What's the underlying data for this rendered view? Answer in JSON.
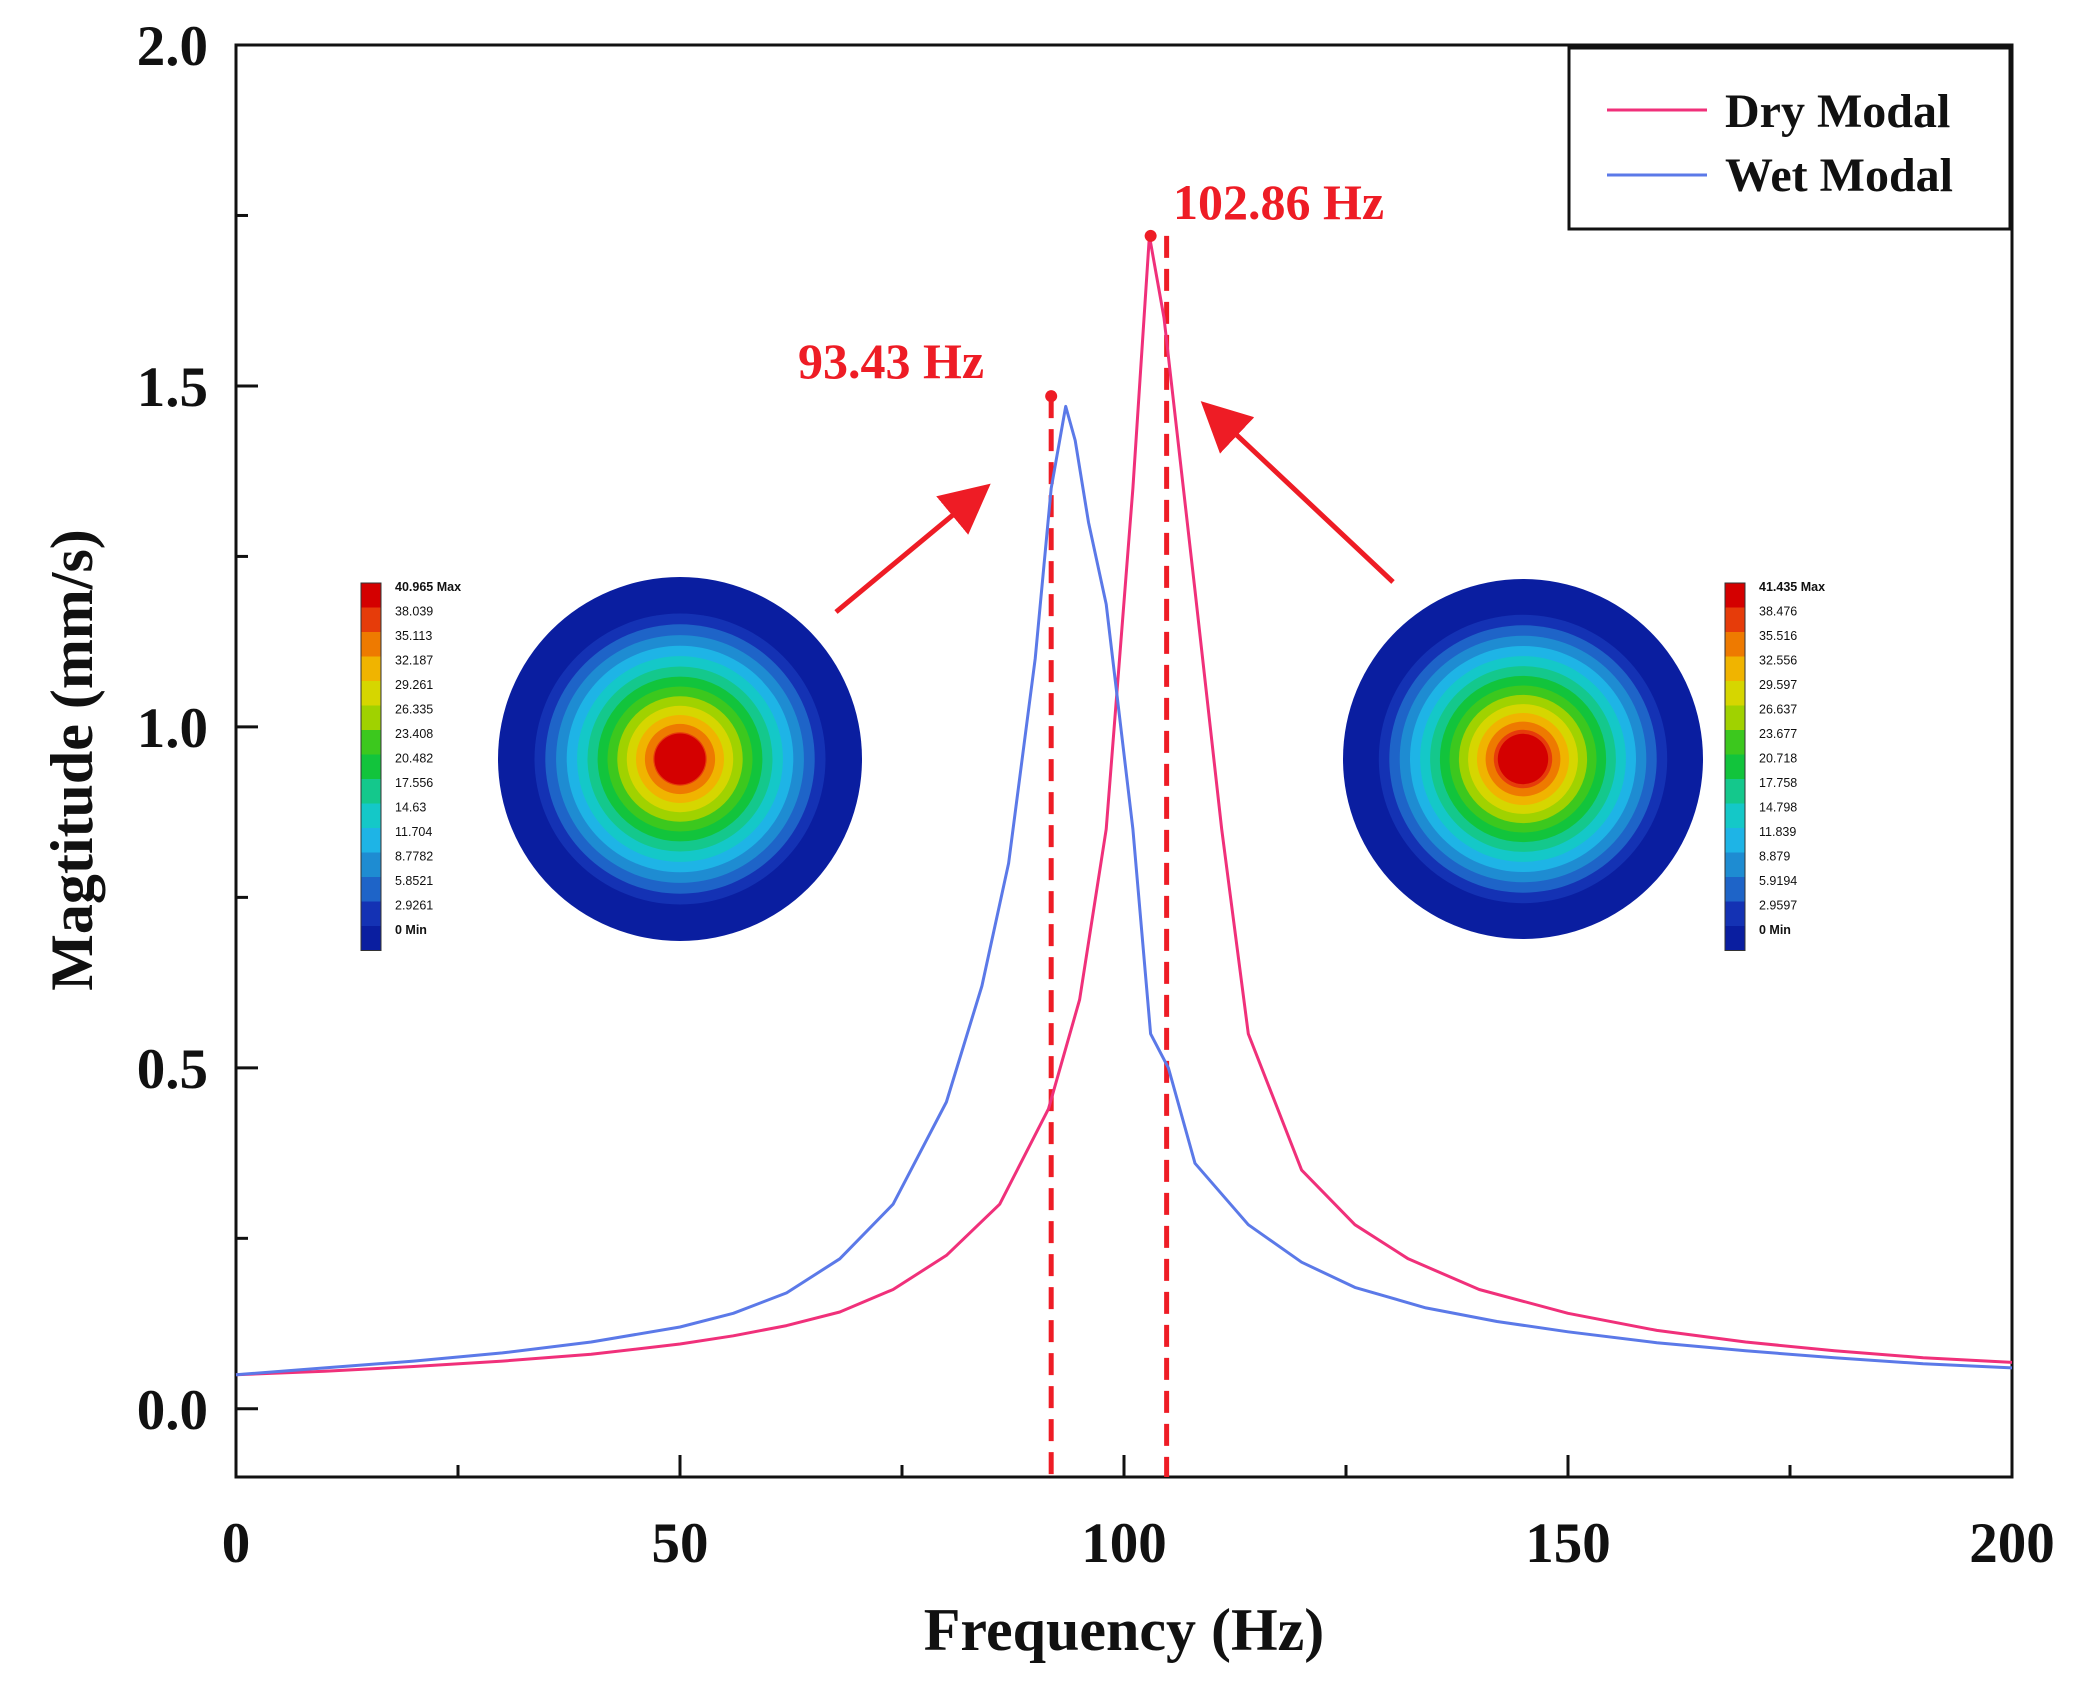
{
  "chart_data": {
    "type": "line",
    "xlabel": "Frequency (Hz)",
    "ylabel": "Magtitude (mm/s)",
    "xlim": [
      0,
      200
    ],
    "ylim": [
      -0.1,
      2.0
    ],
    "x_ticks": [
      "0",
      "50",
      "100",
      "150",
      "200"
    ],
    "y_ticks": [
      "0.0",
      "0.5",
      "1.0",
      "1.5",
      "2.0"
    ],
    "grid": false,
    "legend_position": "top-right",
    "series": [
      {
        "name": "Dry Modal",
        "color": "#f0307a",
        "x": [
          0,
          10,
          20,
          30,
          40,
          50,
          56,
          62,
          68,
          74,
          80,
          86,
          91.5,
          95,
          98,
          101,
          102.86,
          104.5,
          108,
          111,
          114,
          120,
          126,
          132,
          140,
          150,
          160,
          170,
          180,
          190,
          200
        ],
        "y": [
          0.05,
          0.055,
          0.062,
          0.07,
          0.08,
          0.095,
          0.107,
          0.122,
          0.142,
          0.175,
          0.225,
          0.3,
          0.44,
          0.6,
          0.85,
          1.35,
          1.72,
          1.6,
          1.2,
          0.85,
          0.55,
          0.35,
          0.27,
          0.22,
          0.175,
          0.14,
          0.115,
          0.098,
          0.085,
          0.075,
          0.068
        ]
      },
      {
        "name": "Wet Modal",
        "color": "#5b79e8",
        "x": [
          0,
          10,
          20,
          30,
          40,
          50,
          56,
          62,
          68,
          74,
          80,
          84,
          87,
          90,
          91.8,
          93.43,
          94.5,
          96,
          98,
          101,
          103,
          105,
          108,
          114,
          120,
          126,
          134,
          142,
          150,
          160,
          170,
          180,
          190,
          200
        ],
        "y": [
          0.05,
          0.06,
          0.07,
          0.082,
          0.098,
          0.12,
          0.14,
          0.17,
          0.22,
          0.3,
          0.45,
          0.62,
          0.8,
          1.1,
          1.35,
          1.47,
          1.42,
          1.3,
          1.18,
          0.85,
          0.55,
          0.5,
          0.36,
          0.27,
          0.215,
          0.178,
          0.148,
          0.128,
          0.113,
          0.097,
          0.085,
          0.075,
          0.066,
          0.06
        ]
      }
    ],
    "annotations": [
      {
        "text": "93.43 Hz",
        "x": 91.8,
        "y": 1.485,
        "color": "#ee1c25"
      },
      {
        "text": "102.86 Hz",
        "x": 103.0,
        "y": 1.72,
        "color": "#ee1c25"
      }
    ],
    "reference_lines": [
      {
        "x": 91.8,
        "style": "dashed",
        "color": "#ee1c25"
      },
      {
        "x": 104.8,
        "style": "dashed",
        "color": "#ee1c25"
      }
    ],
    "insets": [
      {
        "name": "wet-modal-mode-shape",
        "colorbar_labels": [
          "40.965 Max",
          "38.039",
          "35.113",
          "32.187",
          "29.261",
          "26.335",
          "23.408",
          "20.482",
          "17.556",
          "14.63",
          "11.704",
          "8.7782",
          "5.8521",
          "2.9261",
          "0 Min"
        ]
      },
      {
        "name": "dry-modal-mode-shape",
        "colorbar_labels": [
          "41.435 Max",
          "38.476",
          "35.516",
          "32.556",
          "29.597",
          "26.637",
          "23.677",
          "20.718",
          "17.758",
          "14.798",
          "11.839",
          "8.879",
          "5.9194",
          "2.9597",
          "0 Min"
        ]
      }
    ],
    "contour_colors": [
      "#d40000",
      "#e63c0a",
      "#ee7a00",
      "#f0b400",
      "#d6d600",
      "#a0d200",
      "#3cc81e",
      "#12c43c",
      "#14c88c",
      "#14c8c8",
      "#1eb4e6",
      "#1e8cd2",
      "#1e64c8",
      "#1432b4",
      "#0a1ea0"
    ]
  }
}
